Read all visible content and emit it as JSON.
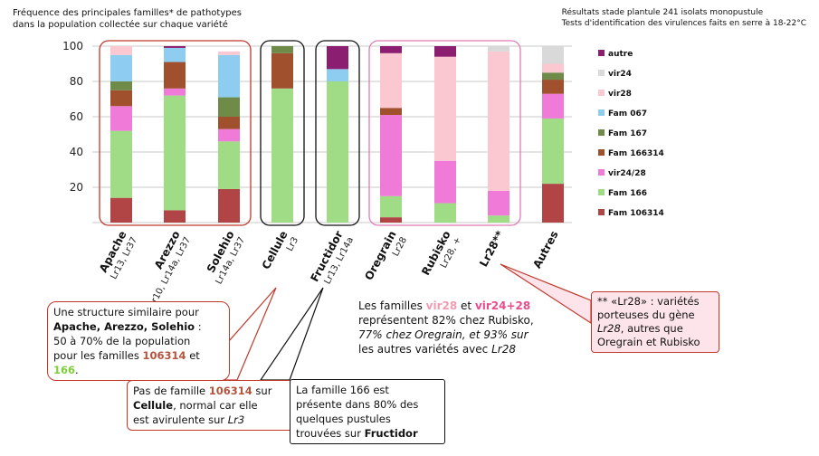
{
  "title_line1": "Fréquence des principales familles* de pathotypes",
  "title_line2": "dans la population collectée sur chaque variété",
  "subtitle_line1": "Résultats stade plantule 241 isolats monopustule",
  "subtitle_line2": "Tests d'identification des virulences faits en serre à 18-22°C",
  "chart_data": {
    "type": "bar",
    "stacked": true,
    "categories": [
      "Apache",
      "Arezzo",
      "Solehio",
      "Cellule",
      "Fructidor",
      "Oregrain",
      "Rubisko",
      "Lr28**",
      "Autres"
    ],
    "category_sublabels": [
      "Lr13, Lr37",
      "Lr10, Lr14a, Lr37",
      "Lr14a, Lr37",
      "Lr3",
      "Lr13, Lr14a",
      "Lr28",
      "Lr28, +",
      "",
      ""
    ],
    "ylim": [
      0,
      100
    ],
    "yticks": [
      20,
      40,
      60,
      80,
      100
    ],
    "grid": true,
    "legend_position": "right",
    "series": [
      {
        "name": "Fam 106314",
        "color": "#b14545",
        "values": [
          14,
          7,
          19,
          0,
          0,
          3,
          0,
          0,
          22
        ]
      },
      {
        "name": "Fam 166",
        "color": "#9fdc85",
        "values": [
          38,
          65,
          27,
          76,
          80,
          12,
          11,
          4,
          37
        ]
      },
      {
        "name": "vir24/28",
        "color": "#f07ad8",
        "values": [
          14,
          4,
          7,
          0,
          0,
          46,
          24,
          14,
          14
        ]
      },
      {
        "name": "Fam 166314",
        "color": "#a0502d",
        "values": [
          9,
          15,
          7,
          20,
          0,
          4,
          0,
          0,
          8
        ]
      },
      {
        "name": "Fam 167",
        "color": "#6e8b4a",
        "values": [
          5,
          0,
          11,
          4,
          0,
          0,
          0,
          0,
          4
        ]
      },
      {
        "name": "Fam 067",
        "color": "#8fcdf0",
        "values": [
          15,
          8,
          24,
          0,
          7,
          0,
          0,
          0,
          0
        ]
      },
      {
        "name": "vir28",
        "color": "#fbc8d2",
        "values": [
          5,
          0,
          2,
          0,
          0,
          31,
          59,
          79,
          5
        ]
      },
      {
        "name": "vir24",
        "color": "#d9d9d9",
        "values": [
          0,
          0,
          0,
          0,
          0,
          0,
          0,
          3,
          10
        ]
      },
      {
        "name": "autre",
        "color": "#8c1e72",
        "values": [
          0,
          1,
          0,
          0,
          13,
          4,
          6,
          0,
          0
        ]
      }
    ]
  },
  "notes": {
    "n1": {
      "a": "Une structure similaire pour",
      "b": "Apache, Arezzo, Solehio",
      "c": " :",
      "d": "50 à 70% de la population",
      "e": "pour les familles ",
      "f": "106314",
      "g": " et",
      "h": "166",
      "i": "."
    },
    "n2": {
      "a": "Pas de famille ",
      "b": "106314",
      "c": " sur",
      "d": "Cellule",
      "e": ", normal car elle",
      "f": "est avirulente sur ",
      "g": "Lr3"
    },
    "n3": {
      "a": "La famille 166 est",
      "b": "présente dans 80% des",
      "c": "quelques pustules",
      "d": "trouvées sur ",
      "e": "Fructidor"
    },
    "n4": {
      "a": "Les familles ",
      "b": "vir28",
      "c": " et ",
      "d": "vir24+28",
      "e": "représentent 82% chez Rubisko,",
      "f": "77% chez Oregrain, et 93% sur",
      "g": "les autres variétés avec ",
      "h": "Lr28"
    },
    "n5": {
      "a": "** «Lr28» : variétés",
      "b": "porteuses du gène",
      "c": "Lr28",
      "d": ", autres que",
      "e": "Oregrain et Rubisko"
    }
  },
  "colors": {
    "group_box_red": "#c0392b",
    "group_box_black": "#111111",
    "group_box_pink": "#e07ab8"
  }
}
